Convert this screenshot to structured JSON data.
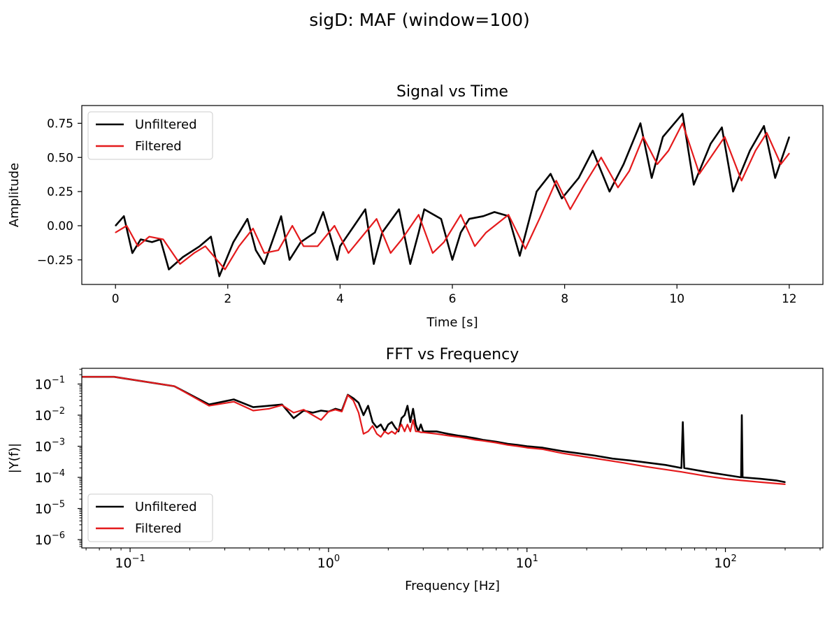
{
  "figure_title": "sigD: MAF (window=100)",
  "chart_data": [
    {
      "type": "line",
      "title": "Signal vs Time",
      "xlabel": "Time [s]",
      "ylabel": "Amplitude",
      "xlim": [
        -0.6,
        12.6
      ],
      "ylim": [
        -0.43,
        0.88
      ],
      "xticks": [
        0,
        2,
        4,
        6,
        8,
        10,
        12
      ],
      "yticks": [
        -0.25,
        0.0,
        0.25,
        0.5,
        0.75
      ],
      "xtick_labels": [
        "0",
        "2",
        "4",
        "6",
        "8",
        "10",
        "12"
      ],
      "ytick_labels": [
        "−0.25",
        "0.00",
        "0.25",
        "0.50",
        "0.75"
      ],
      "legend": {
        "position": "upper-left",
        "entries": [
          "Unfiltered",
          "Filtered"
        ]
      },
      "series": [
        {
          "name": "Unfiltered",
          "color": "#000000",
          "x": [
            0,
            0.15,
            0.3,
            0.45,
            0.65,
            0.8,
            0.95,
            1.2,
            1.5,
            1.7,
            1.85,
            2.1,
            2.35,
            2.5,
            2.65,
            2.95,
            3.1,
            3.3,
            3.55,
            3.7,
            3.95,
            4.0,
            4.25,
            4.45,
            4.6,
            4.75,
            5.05,
            5.25,
            5.4,
            5.5,
            5.8,
            6.0,
            6.15,
            6.3,
            6.55,
            6.75,
            7.0,
            7.2,
            7.5,
            7.75,
            7.95,
            8.25,
            8.5,
            8.8,
            9.05,
            9.35,
            9.55,
            9.75,
            10.1,
            10.3,
            10.6,
            10.8,
            11.0,
            11.3,
            11.55,
            11.75,
            12.0
          ],
          "y": [
            0.0,
            0.07,
            -0.2,
            -0.1,
            -0.12,
            -0.1,
            -0.32,
            -0.23,
            -0.15,
            -0.08,
            -0.37,
            -0.12,
            0.05,
            -0.18,
            -0.28,
            0.07,
            -0.25,
            -0.12,
            -0.05,
            0.1,
            -0.25,
            -0.15,
            0.0,
            0.12,
            -0.28,
            -0.05,
            0.12,
            -0.28,
            -0.05,
            0.12,
            0.05,
            -0.25,
            -0.05,
            0.05,
            0.07,
            0.1,
            0.07,
            -0.22,
            0.25,
            0.38,
            0.2,
            0.35,
            0.55,
            0.25,
            0.45,
            0.75,
            0.35,
            0.65,
            0.82,
            0.3,
            0.6,
            0.72,
            0.25,
            0.55,
            0.73,
            0.35,
            0.65
          ]
        },
        {
          "name": "Filtered",
          "color": "#e41a1c",
          "x": [
            0,
            0.2,
            0.4,
            0.6,
            0.85,
            1.15,
            1.4,
            1.6,
            1.95,
            2.2,
            2.45,
            2.65,
            2.9,
            3.15,
            3.35,
            3.6,
            3.9,
            4.15,
            4.35,
            4.65,
            4.9,
            5.1,
            5.4,
            5.65,
            5.85,
            6.15,
            6.4,
            6.6,
            7.0,
            7.3,
            7.55,
            7.85,
            8.1,
            8.35,
            8.65,
            8.95,
            9.15,
            9.4,
            9.65,
            9.85,
            10.1,
            10.4,
            10.6,
            10.85,
            11.15,
            11.4,
            11.6,
            11.85,
            12.0
          ],
          "y": [
            -0.05,
            0.0,
            -0.15,
            -0.08,
            -0.1,
            -0.28,
            -0.2,
            -0.15,
            -0.32,
            -0.15,
            -0.02,
            -0.2,
            -0.18,
            0.0,
            -0.15,
            -0.15,
            0.0,
            -0.2,
            -0.1,
            0.05,
            -0.2,
            -0.1,
            0.08,
            -0.2,
            -0.12,
            0.08,
            -0.15,
            -0.05,
            0.08,
            -0.17,
            0.05,
            0.33,
            0.12,
            0.3,
            0.5,
            0.28,
            0.4,
            0.65,
            0.45,
            0.55,
            0.75,
            0.38,
            0.5,
            0.65,
            0.33,
            0.55,
            0.68,
            0.45,
            0.53
          ]
        }
      ]
    },
    {
      "type": "line",
      "title": "FFT vs Frequency",
      "xlabel": "Frequency [Hz]",
      "ylabel": "|Y(f)|",
      "xscale": "log",
      "yscale": "log",
      "xlim": [
        0.0571,
        310
      ],
      "ylim": [
        5.4e-07,
        0.32
      ],
      "xticks": [
        0.1,
        1,
        10,
        100
      ],
      "yticks": [
        1e-06,
        1e-05,
        0.0001,
        0.001,
        0.01,
        0.1
      ],
      "xtick_labels": [
        [
          "10",
          "−1"
        ],
        [
          "10",
          "0"
        ],
        [
          "10",
          "1"
        ],
        [
          "10",
          "2"
        ]
      ],
      "ytick_labels": [
        [
          "10",
          "−6"
        ],
        [
          "10",
          "−5"
        ],
        [
          "10",
          "−4"
        ],
        [
          "10",
          "−3"
        ],
        [
          "10",
          "−2"
        ],
        [
          "10",
          "−1"
        ]
      ],
      "legend": {
        "position": "lower-left",
        "entries": [
          "Unfiltered",
          "Filtered"
        ]
      },
      "series": [
        {
          "name": "Unfiltered",
          "color": "#000000",
          "x": [
            0.05,
            0.083,
            0.167,
            0.25,
            0.333,
            0.417,
            0.5,
            0.583,
            0.667,
            0.75,
            0.833,
            0.917,
            1.0,
            1.083,
            1.167,
            1.25,
            1.333,
            1.417,
            1.5,
            1.583,
            1.667,
            1.75,
            1.833,
            1.917,
            2.0,
            2.083,
            2.167,
            2.25,
            2.333,
            2.417,
            2.5,
            2.583,
            2.667,
            2.75,
            2.833,
            2.917,
            3.0,
            3.5,
            4.0,
            4.5,
            5.0,
            5.5,
            6.0,
            7.0,
            8.0,
            9.0,
            10,
            12,
            15,
            18,
            22,
            27,
            33,
            40,
            50,
            60,
            61,
            62,
            80,
            100,
            120,
            121,
            122,
            150,
            180,
            200
          ],
          "y": [
            0.17,
            0.17,
            0.085,
            0.022,
            0.032,
            0.018,
            0.02,
            0.022,
            0.008,
            0.014,
            0.012,
            0.014,
            0.013,
            0.016,
            0.014,
            0.045,
            0.035,
            0.025,
            0.01,
            0.02,
            0.006,
            0.004,
            0.005,
            0.003,
            0.005,
            0.006,
            0.004,
            0.003,
            0.008,
            0.01,
            0.02,
            0.006,
            0.016,
            0.005,
            0.003,
            0.005,
            0.003,
            0.003,
            0.0025,
            0.0022,
            0.002,
            0.0018,
            0.0016,
            0.0014,
            0.0012,
            0.0011,
            0.001,
            0.0009,
            0.0007,
            0.0006,
            0.0005,
            0.0004,
            0.00035,
            0.0003,
            0.00025,
            0.0002,
            0.006,
            0.0002,
            0.00015,
            0.00012,
            0.0001,
            0.01,
            0.0001,
            9e-05,
            8e-05,
            7e-05
          ]
        },
        {
          "name": "Filtered",
          "color": "#e41a1c",
          "x": [
            0.05,
            0.083,
            0.167,
            0.25,
            0.333,
            0.417,
            0.5,
            0.583,
            0.667,
            0.75,
            0.833,
            0.917,
            1.0,
            1.083,
            1.167,
            1.25,
            1.333,
            1.417,
            1.5,
            1.583,
            1.667,
            1.75,
            1.833,
            1.917,
            2.0,
            2.083,
            2.167,
            2.25,
            2.333,
            2.417,
            2.5,
            2.583,
            2.667,
            2.75,
            2.833,
            2.917,
            3.0,
            3.5,
            4.0,
            4.5,
            5.0,
            5.5,
            6.0,
            7.0,
            8.0,
            9.0,
            10,
            12,
            15,
            20,
            30,
            40,
            60,
            80,
            100,
            120,
            150,
            200
          ],
          "y": [
            0.17,
            0.17,
            0.085,
            0.02,
            0.027,
            0.014,
            0.016,
            0.021,
            0.012,
            0.015,
            0.01,
            0.007,
            0.013,
            0.015,
            0.013,
            0.044,
            0.03,
            0.012,
            0.0025,
            0.003,
            0.0045,
            0.0025,
            0.002,
            0.003,
            0.0025,
            0.003,
            0.0025,
            0.0035,
            0.005,
            0.003,
            0.005,
            0.003,
            0.007,
            0.003,
            0.003,
            0.0028,
            0.0028,
            0.0025,
            0.0022,
            0.002,
            0.0018,
            0.0016,
            0.0015,
            0.0013,
            0.0011,
            0.001,
            0.0009,
            0.0008,
            0.0006,
            0.00045,
            0.0003,
            0.00022,
            0.00015,
            0.00011,
            9e-05,
            8e-05,
            7e-05,
            6e-05
          ]
        }
      ]
    }
  ]
}
